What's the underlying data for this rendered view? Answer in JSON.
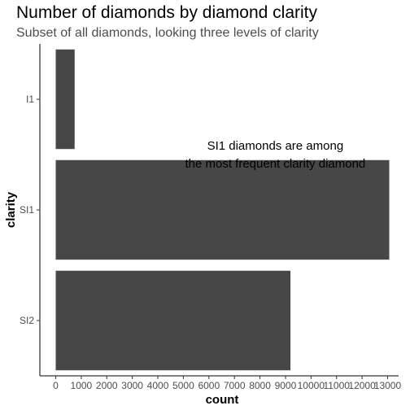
{
  "chart_data": {
    "type": "bar",
    "orientation": "horizontal",
    "title": "Number of diamonds by diamond clarity",
    "subtitle": "Subset of all diamonds, looking three levels of clarity",
    "xlabel": "count",
    "ylabel": "clarity",
    "categories": [
      "I1",
      "SI1",
      "SI2"
    ],
    "values": [
      741,
      13065,
      9194
    ],
    "xlim": [
      0,
      13065
    ],
    "x_ticks": [
      0,
      1000,
      2000,
      3000,
      4000,
      5000,
      6000,
      7000,
      8000,
      9000,
      10000,
      11000,
      12000,
      13000
    ],
    "annotation": {
      "lines": [
        "SI1 diamonds are among",
        "the most frequent clarity diamond"
      ],
      "x": 8600,
      "y_between": [
        "I1",
        "SI1"
      ]
    },
    "grid": false,
    "legend": "none",
    "bar_color": "#474747"
  }
}
